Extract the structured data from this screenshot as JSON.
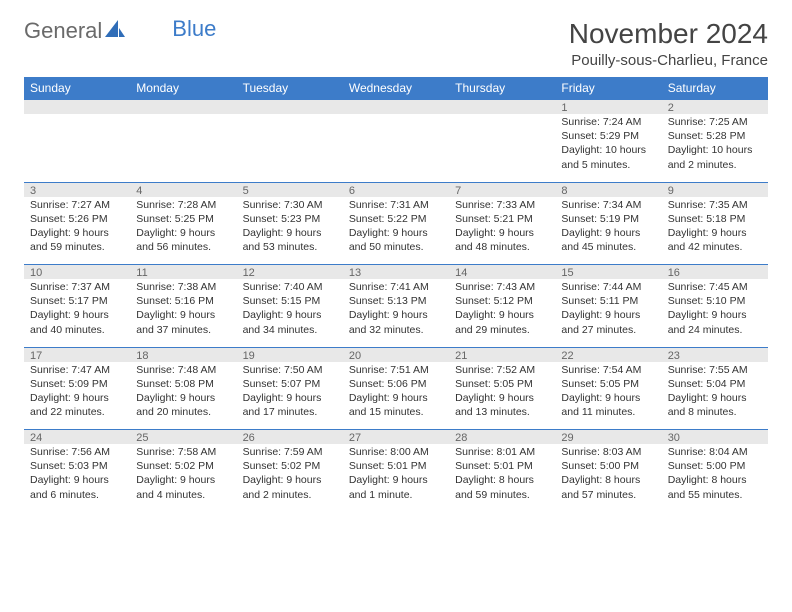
{
  "brand": {
    "word1": "General",
    "word2": "Blue"
  },
  "title": {
    "month": "November 2024",
    "location": "Pouilly-sous-Charlieu, France"
  },
  "colors": {
    "header_bg": "#3d7cc9",
    "header_fg": "#ffffff",
    "daystrip_bg": "#e8e8e8",
    "border": "#3d7cc9",
    "text": "#333333",
    "muted": "#666666"
  },
  "weekdays": [
    "Sunday",
    "Monday",
    "Tuesday",
    "Wednesday",
    "Thursday",
    "Friday",
    "Saturday"
  ],
  "weeks": [
    {
      "days": [
        null,
        null,
        null,
        null,
        null,
        {
          "n": "1",
          "sunrise": "Sunrise: 7:24 AM",
          "sunset": "Sunset: 5:29 PM",
          "daylight": "Daylight: 10 hours and 5 minutes."
        },
        {
          "n": "2",
          "sunrise": "Sunrise: 7:25 AM",
          "sunset": "Sunset: 5:28 PM",
          "daylight": "Daylight: 10 hours and 2 minutes."
        }
      ]
    },
    {
      "days": [
        {
          "n": "3",
          "sunrise": "Sunrise: 7:27 AM",
          "sunset": "Sunset: 5:26 PM",
          "daylight": "Daylight: 9 hours and 59 minutes."
        },
        {
          "n": "4",
          "sunrise": "Sunrise: 7:28 AM",
          "sunset": "Sunset: 5:25 PM",
          "daylight": "Daylight: 9 hours and 56 minutes."
        },
        {
          "n": "5",
          "sunrise": "Sunrise: 7:30 AM",
          "sunset": "Sunset: 5:23 PM",
          "daylight": "Daylight: 9 hours and 53 minutes."
        },
        {
          "n": "6",
          "sunrise": "Sunrise: 7:31 AM",
          "sunset": "Sunset: 5:22 PM",
          "daylight": "Daylight: 9 hours and 50 minutes."
        },
        {
          "n": "7",
          "sunrise": "Sunrise: 7:33 AM",
          "sunset": "Sunset: 5:21 PM",
          "daylight": "Daylight: 9 hours and 48 minutes."
        },
        {
          "n": "8",
          "sunrise": "Sunrise: 7:34 AM",
          "sunset": "Sunset: 5:19 PM",
          "daylight": "Daylight: 9 hours and 45 minutes."
        },
        {
          "n": "9",
          "sunrise": "Sunrise: 7:35 AM",
          "sunset": "Sunset: 5:18 PM",
          "daylight": "Daylight: 9 hours and 42 minutes."
        }
      ]
    },
    {
      "days": [
        {
          "n": "10",
          "sunrise": "Sunrise: 7:37 AM",
          "sunset": "Sunset: 5:17 PM",
          "daylight": "Daylight: 9 hours and 40 minutes."
        },
        {
          "n": "11",
          "sunrise": "Sunrise: 7:38 AM",
          "sunset": "Sunset: 5:16 PM",
          "daylight": "Daylight: 9 hours and 37 minutes."
        },
        {
          "n": "12",
          "sunrise": "Sunrise: 7:40 AM",
          "sunset": "Sunset: 5:15 PM",
          "daylight": "Daylight: 9 hours and 34 minutes."
        },
        {
          "n": "13",
          "sunrise": "Sunrise: 7:41 AM",
          "sunset": "Sunset: 5:13 PM",
          "daylight": "Daylight: 9 hours and 32 minutes."
        },
        {
          "n": "14",
          "sunrise": "Sunrise: 7:43 AM",
          "sunset": "Sunset: 5:12 PM",
          "daylight": "Daylight: 9 hours and 29 minutes."
        },
        {
          "n": "15",
          "sunrise": "Sunrise: 7:44 AM",
          "sunset": "Sunset: 5:11 PM",
          "daylight": "Daylight: 9 hours and 27 minutes."
        },
        {
          "n": "16",
          "sunrise": "Sunrise: 7:45 AM",
          "sunset": "Sunset: 5:10 PM",
          "daylight": "Daylight: 9 hours and 24 minutes."
        }
      ]
    },
    {
      "days": [
        {
          "n": "17",
          "sunrise": "Sunrise: 7:47 AM",
          "sunset": "Sunset: 5:09 PM",
          "daylight": "Daylight: 9 hours and 22 minutes."
        },
        {
          "n": "18",
          "sunrise": "Sunrise: 7:48 AM",
          "sunset": "Sunset: 5:08 PM",
          "daylight": "Daylight: 9 hours and 20 minutes."
        },
        {
          "n": "19",
          "sunrise": "Sunrise: 7:50 AM",
          "sunset": "Sunset: 5:07 PM",
          "daylight": "Daylight: 9 hours and 17 minutes."
        },
        {
          "n": "20",
          "sunrise": "Sunrise: 7:51 AM",
          "sunset": "Sunset: 5:06 PM",
          "daylight": "Daylight: 9 hours and 15 minutes."
        },
        {
          "n": "21",
          "sunrise": "Sunrise: 7:52 AM",
          "sunset": "Sunset: 5:05 PM",
          "daylight": "Daylight: 9 hours and 13 minutes."
        },
        {
          "n": "22",
          "sunrise": "Sunrise: 7:54 AM",
          "sunset": "Sunset: 5:05 PM",
          "daylight": "Daylight: 9 hours and 11 minutes."
        },
        {
          "n": "23",
          "sunrise": "Sunrise: 7:55 AM",
          "sunset": "Sunset: 5:04 PM",
          "daylight": "Daylight: 9 hours and 8 minutes."
        }
      ]
    },
    {
      "days": [
        {
          "n": "24",
          "sunrise": "Sunrise: 7:56 AM",
          "sunset": "Sunset: 5:03 PM",
          "daylight": "Daylight: 9 hours and 6 minutes."
        },
        {
          "n": "25",
          "sunrise": "Sunrise: 7:58 AM",
          "sunset": "Sunset: 5:02 PM",
          "daylight": "Daylight: 9 hours and 4 minutes."
        },
        {
          "n": "26",
          "sunrise": "Sunrise: 7:59 AM",
          "sunset": "Sunset: 5:02 PM",
          "daylight": "Daylight: 9 hours and 2 minutes."
        },
        {
          "n": "27",
          "sunrise": "Sunrise: 8:00 AM",
          "sunset": "Sunset: 5:01 PM",
          "daylight": "Daylight: 9 hours and 1 minute."
        },
        {
          "n": "28",
          "sunrise": "Sunrise: 8:01 AM",
          "sunset": "Sunset: 5:01 PM",
          "daylight": "Daylight: 8 hours and 59 minutes."
        },
        {
          "n": "29",
          "sunrise": "Sunrise: 8:03 AM",
          "sunset": "Sunset: 5:00 PM",
          "daylight": "Daylight: 8 hours and 57 minutes."
        },
        {
          "n": "30",
          "sunrise": "Sunrise: 8:04 AM",
          "sunset": "Sunset: 5:00 PM",
          "daylight": "Daylight: 8 hours and 55 minutes."
        }
      ]
    }
  ]
}
